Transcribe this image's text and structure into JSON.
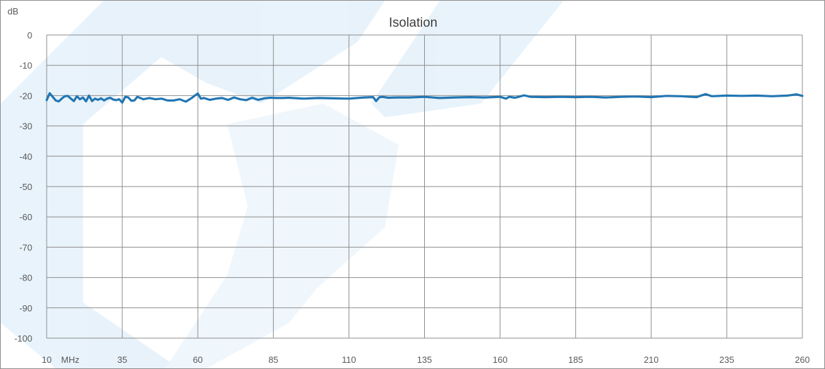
{
  "chart_data": {
    "type": "line",
    "title": "Isolation",
    "ylabel": "dB",
    "xlabel": "MHz",
    "xlim": [
      10,
      260
    ],
    "ylim": [
      -100,
      0
    ],
    "x_ticks": [
      10,
      35,
      60,
      85,
      110,
      135,
      160,
      185,
      210,
      235,
      260
    ],
    "y_ticks": [
      0,
      -10,
      -20,
      -30,
      -40,
      -50,
      -60,
      -70,
      -80,
      -90,
      -100
    ],
    "grid": true,
    "colors": {
      "series": "#2176b3",
      "grid": "#8c8c8c",
      "watermark": "#d6e9f7"
    },
    "series": [
      {
        "x": [
          10,
          11,
          12,
          13,
          14,
          15,
          16,
          17,
          18,
          19,
          20,
          21,
          22,
          23,
          24,
          25,
          26,
          27,
          28,
          29,
          30,
          31,
          32,
          33,
          34,
          35,
          36,
          37,
          38,
          39,
          40,
          42,
          44,
          46,
          48,
          50,
          52,
          54,
          56,
          58,
          59,
          60,
          61,
          62,
          64,
          66,
          68,
          70,
          72,
          74,
          76,
          78,
          80,
          82,
          84,
          86,
          88,
          90,
          95,
          100,
          105,
          110,
          115,
          118,
          119,
          120,
          121,
          123,
          126,
          130,
          135,
          140,
          145,
          150,
          155,
          160,
          162,
          163,
          165,
          168,
          170,
          175,
          180,
          185,
          190,
          195,
          200,
          205,
          210,
          215,
          220,
          225,
          228,
          230,
          235,
          240,
          245,
          250,
          255,
          258,
          260
        ],
        "y": [
          -21.5,
          -19.2,
          -20.4,
          -21.6,
          -21.9,
          -21.0,
          -20.2,
          -20.1,
          -21.0,
          -21.8,
          -20.2,
          -21.2,
          -20.6,
          -21.9,
          -20.0,
          -21.8,
          -21.0,
          -21.4,
          -20.9,
          -21.6,
          -21.0,
          -20.7,
          -21.3,
          -21.5,
          -21.2,
          -22.3,
          -20.4,
          -20.6,
          -21.7,
          -21.6,
          -20.4,
          -21.2,
          -20.8,
          -21.2,
          -21.0,
          -21.6,
          -21.6,
          -21.2,
          -22.0,
          -20.8,
          -20.0,
          -19.3,
          -21.0,
          -20.8,
          -21.4,
          -21.0,
          -20.8,
          -21.4,
          -20.6,
          -21.2,
          -21.5,
          -20.7,
          -21.4,
          -20.9,
          -20.7,
          -20.8,
          -20.8,
          -20.7,
          -21.0,
          -20.8,
          -20.9,
          -21.0,
          -20.6,
          -20.5,
          -21.8,
          -20.6,
          -20.4,
          -20.7,
          -20.6,
          -20.6,
          -20.4,
          -20.8,
          -20.6,
          -20.5,
          -20.6,
          -20.4,
          -21.0,
          -20.4,
          -20.7,
          -19.9,
          -20.4,
          -20.5,
          -20.4,
          -20.5,
          -20.4,
          -20.6,
          -20.4,
          -20.3,
          -20.5,
          -20.1,
          -20.2,
          -20.5,
          -19.5,
          -20.2,
          -20.0,
          -20.1,
          -20.0,
          -20.2,
          -20.0,
          -19.6,
          -20.1
        ]
      }
    ]
  }
}
